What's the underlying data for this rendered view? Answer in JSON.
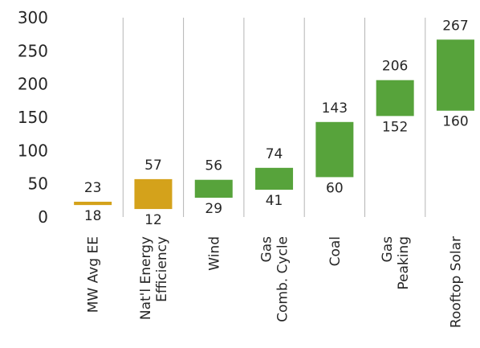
{
  "chart_data": {
    "type": "bar",
    "subtype": "floating-range",
    "title": "(approx. title text cut off at top of image)",
    "y_ticks": [
      "0",
      "50",
      "100",
      "150",
      "200",
      "250",
      "300"
    ],
    "ylim": [
      0,
      300
    ],
    "grid": false,
    "category_separators": true,
    "categories": [
      {
        "label_lines": [
          "MW Avg EE"
        ],
        "low": 18,
        "high": 23,
        "low_label": "18",
        "high_label": "23",
        "color": "#D4A21B"
      },
      {
        "label_lines": [
          "Nat'l Energy",
          "Efficiency"
        ],
        "low": 12,
        "high": 57,
        "low_label": "12",
        "high_label": "57",
        "color": "#D4A21B"
      },
      {
        "label_lines": [
          "Wind"
        ],
        "low": 29,
        "high": 56,
        "low_label": "29",
        "high_label": "56",
        "color": "#57A33B"
      },
      {
        "label_lines": [
          "Gas",
          "Comb. Cycle"
        ],
        "low": 41,
        "high": 74,
        "low_label": "41",
        "high_label": "74",
        "color": "#57A33B"
      },
      {
        "label_lines": [
          "Coal"
        ],
        "low": 60,
        "high": 143,
        "low_label": "60",
        "high_label": "143",
        "color": "#57A33B"
      },
      {
        "label_lines": [
          "Gas",
          "Peaking"
        ],
        "low": 152,
        "high": 206,
        "low_label": "152",
        "high_label": "206",
        "color": "#57A33B"
      },
      {
        "label_lines": [
          "Rooftop Solar"
        ],
        "low": 160,
        "high": 267,
        "low_label": "160",
        "high_label": "267",
        "color": "#57A33B"
      }
    ]
  }
}
